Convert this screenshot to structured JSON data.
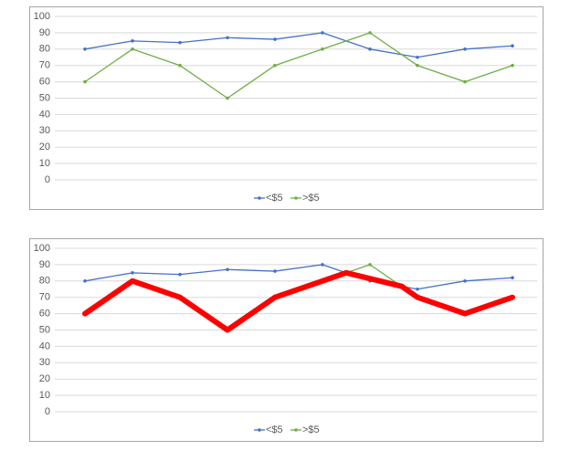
{
  "chart_data": [
    {
      "type": "line",
      "x": [
        1,
        2,
        3,
        4,
        5,
        6,
        7,
        8,
        9,
        10
      ],
      "xlim": [
        0.5,
        10.5
      ],
      "ylim": [
        0,
        100
      ],
      "yticks": [
        0,
        10,
        20,
        30,
        40,
        50,
        60,
        70,
        80,
        90,
        100
      ],
      "grid": true,
      "legend": "bottom",
      "series": [
        {
          "name": "<$5",
          "color": "#4472c4",
          "values": [
            80,
            85,
            84,
            87,
            86,
            90,
            80,
            75,
            80,
            82
          ]
        },
        {
          "name": ">$5",
          "color": "#70ad47",
          "values": [
            60,
            80,
            70,
            50,
            70,
            80,
            90,
            70,
            60,
            70
          ]
        }
      ]
    },
    {
      "type": "line",
      "x": [
        1,
        2,
        3,
        4,
        5,
        6,
        7,
        8,
        9,
        10
      ],
      "xlim": [
        0.5,
        10.5
      ],
      "ylim": [
        0,
        100
      ],
      "yticks": [
        0,
        10,
        20,
        30,
        40,
        50,
        60,
        70,
        80,
        90,
        100
      ],
      "grid": true,
      "legend": "bottom",
      "series": [
        {
          "name": "<$5",
          "color": "#4472c4",
          "values": [
            80,
            85,
            84,
            87,
            86,
            90,
            80,
            75,
            80,
            82
          ]
        },
        {
          "name": ">$5",
          "color": "#70ad47",
          "values": [
            60,
            80,
            70,
            50,
            70,
            80,
            90,
            70,
            60,
            70
          ]
        },
        {
          "color": "#ff0000",
          "width": 6,
          "x": [
            1,
            2,
            3,
            4,
            5,
            6,
            6.5,
            7.67,
            8,
            9,
            10
          ],
          "values": [
            60,
            80,
            70,
            50,
            70,
            80,
            85,
            76.7,
            70,
            60,
            70
          ]
        }
      ]
    }
  ]
}
